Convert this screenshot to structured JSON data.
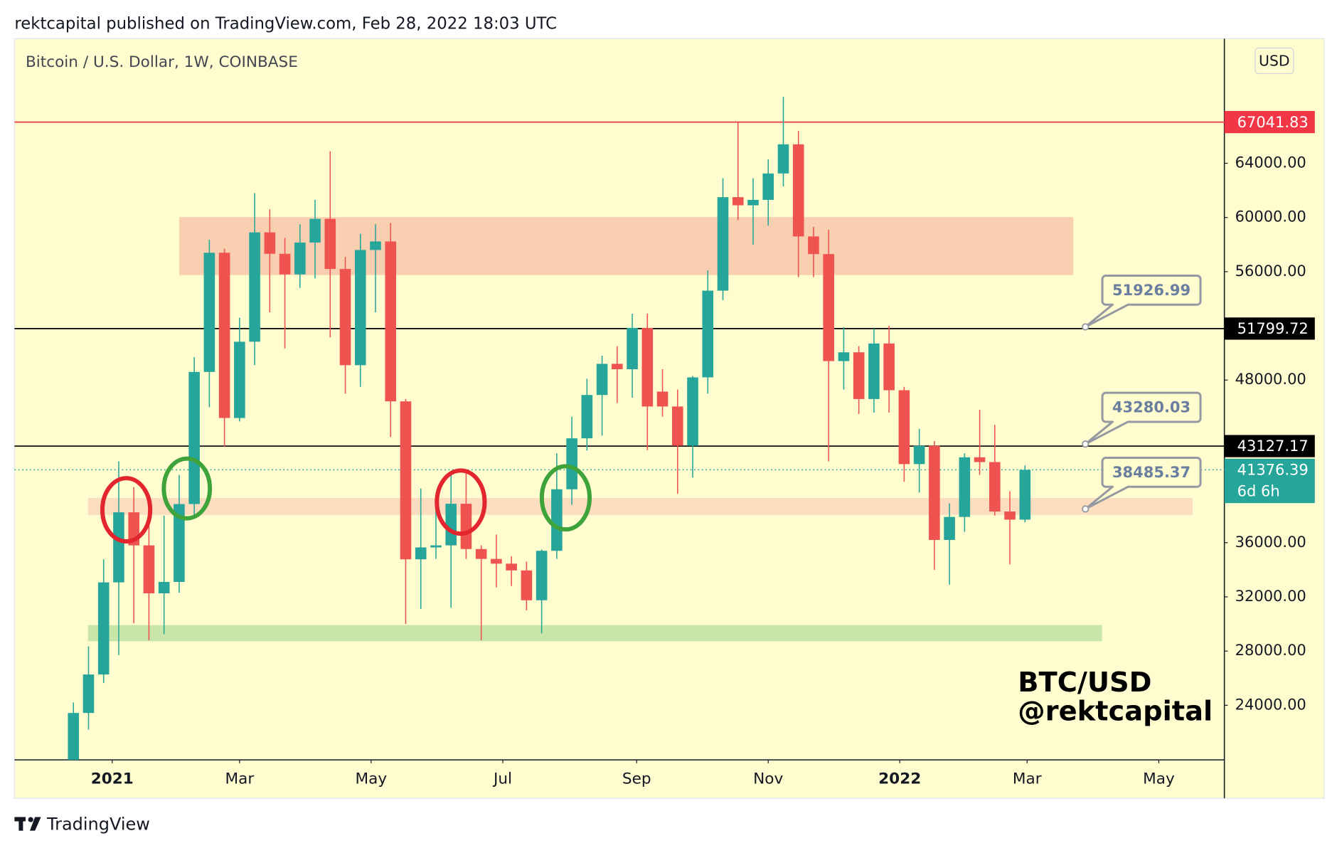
{
  "header": "rektcapital published on TradingView.com, Feb 28, 2022 18:03 UTC",
  "footer": "TradingView",
  "chart_data": {
    "type": "candlestick",
    "title": "Bitcoin / U.S. Dollar, 1W, COINBASE",
    "currency": "USD",
    "countdown": "6d 6h",
    "annotations": [
      "BTC/USD",
      "@rektcapital"
    ],
    "up_color": "#26a69a",
    "down_color": "#ef5350",
    "x": [
      0,
      1,
      2,
      3,
      4,
      5,
      6,
      7,
      8,
      9,
      10,
      11,
      12,
      13,
      14,
      15,
      16,
      17,
      18,
      19,
      20,
      21,
      22,
      23,
      24,
      25,
      26,
      27,
      28,
      29,
      30,
      31,
      32,
      33,
      34,
      35,
      36,
      37,
      38,
      39,
      40,
      41,
      42,
      43,
      44,
      45,
      46,
      47,
      48,
      49,
      50,
      51,
      52,
      53,
      54,
      55,
      56,
      57,
      58,
      59,
      60,
      61,
      62,
      63
    ],
    "open": [
      19300,
      23430,
      26270,
      33070,
      38240,
      35800,
      32260,
      33100,
      38850,
      48600,
      57400,
      45200,
      50830,
      58900,
      57320,
      55800,
      58150,
      59900,
      56200,
      49100,
      57600,
      58230,
      46430,
      34770,
      35650,
      35800,
      38870,
      35530,
      34800,
      34450,
      33950,
      31750,
      35400,
      39940,
      43700,
      46900,
      49200,
      48800,
      51850,
      47150,
      46050,
      43150,
      48200,
      54600,
      61500,
      60900,
      61300,
      63250,
      65400,
      58600,
      57300,
      49400,
      50050,
      46600,
      50700,
      47250,
      41800,
      43150,
      36200,
      37900,
      42300,
      41950,
      38300,
      37700
    ],
    "high": [
      24200,
      28350,
      34770,
      42000,
      40100,
      37900,
      38000,
      41000,
      49700,
      58350,
      57700,
      52600,
      61800,
      60600,
      58500,
      59500,
      61300,
      64880,
      57100,
      58800,
      59500,
      59600,
      46600,
      40000,
      39400,
      41300,
      41300,
      35800,
      36600,
      35000,
      34600,
      35500,
      42600,
      45300,
      48100,
      49800,
      50500,
      52900,
      52900,
      48800,
      47300,
      48300,
      56100,
      62900,
      67000,
      62900,
      64300,
      68900,
      66400,
      59300,
      59100,
      51900,
      50500,
      51800,
      52000,
      47500,
      44400,
      43500,
      38900,
      42600,
      45800,
      44700,
      39800,
      41700
    ],
    "low": [
      19000,
      22200,
      25640,
      27700,
      30050,
      28800,
      29250,
      32300,
      38000,
      46000,
      43100,
      44950,
      49100,
      53000,
      50330,
      54800,
      55500,
      51150,
      47000,
      47500,
      53000,
      43800,
      30000,
      31100,
      34800,
      31200,
      34800,
      28800,
      32700,
      32800,
      31000,
      29300,
      34800,
      38800,
      42800,
      43900,
      46300,
      46700,
      42830,
      45300,
      39600,
      40800,
      47000,
      53900,
      59800,
      58000,
      59400,
      62300,
      55600,
      55600,
      42000,
      47300,
      45500,
      45600,
      45600,
      40500,
      39700,
      34000,
      32900,
      36800,
      41000,
      38000,
      34400,
      37500
    ],
    "close": [
      23430,
      26270,
      33070,
      38240,
      35800,
      32260,
      33100,
      38850,
      48600,
      57400,
      45200,
      50830,
      58900,
      57320,
      55800,
      58150,
      59900,
      56200,
      49100,
      57600,
      58230,
      46430,
      34770,
      35650,
      35800,
      38870,
      35530,
      34800,
      34450,
      33950,
      31750,
      35400,
      39940,
      43700,
      46900,
      49200,
      48800,
      51850,
      46050,
      46050,
      43150,
      48200,
      54600,
      61500,
      60900,
      61300,
      63250,
      65400,
      58600,
      57300,
      49400,
      50050,
      46600,
      50700,
      47250,
      41800,
      43150,
      36200,
      37900,
      42300,
      41950,
      38300,
      37700,
      41376.39
    ],
    "xlim": [
      -3.9,
      76.2
    ],
    "ylim": [
      19970,
      73200
    ],
    "xticks": [
      {
        "value": 2.57,
        "label": "2021"
      },
      {
        "value": 11,
        "label": "Mar"
      },
      {
        "value": 19.71,
        "label": "May"
      },
      {
        "value": 28.43,
        "label": "Jul"
      },
      {
        "value": 37.29,
        "label": "Sep"
      },
      {
        "value": 46,
        "label": "Nov"
      },
      {
        "value": 54.71,
        "label": "2022"
      },
      {
        "value": 63.14,
        "label": "Mar"
      },
      {
        "value": 71.86,
        "label": "May"
      }
    ],
    "yticks": [
      {
        "value": 24000,
        "label": "24000.00"
      },
      {
        "value": 28000,
        "label": "28000.00"
      },
      {
        "value": 32000,
        "label": "32000.00"
      },
      {
        "value": 36000,
        "label": "36000.00"
      },
      {
        "value": 48000,
        "label": "48000.00"
      },
      {
        "value": 56000,
        "label": "56000.00"
      },
      {
        "value": 60000,
        "label": "60000.00"
      },
      {
        "value": 64000,
        "label": "64000.00"
      }
    ],
    "zones": [
      {
        "low": 55750,
        "high": 60030,
        "from": 7.0,
        "to": 66.2,
        "color": "#f9cfb1"
      },
      {
        "low": 38050,
        "high": 39300,
        "from": 0.96,
        "to": 74.1,
        "color": "#fcddc0"
      },
      {
        "low": 28720,
        "high": 29920,
        "from": 0.96,
        "to": 68.1,
        "color": "#c8e6a9"
      }
    ],
    "levels": [
      {
        "value": 67041.83,
        "color": "#f23645",
        "style": "solid"
      },
      {
        "value": 51799.72,
        "color": "#000000",
        "style": "solid"
      },
      {
        "value": 43127.17,
        "color": "#000000",
        "style": "solid"
      },
      {
        "value": 41376.39,
        "color": "#26a69a",
        "style": "dotted"
      }
    ],
    "callouts": [
      {
        "value": 51926.99,
        "x": 67
      },
      {
        "value": 43280.03,
        "x": 67
      },
      {
        "value": 38485.37,
        "x": 67
      }
    ]
  }
}
